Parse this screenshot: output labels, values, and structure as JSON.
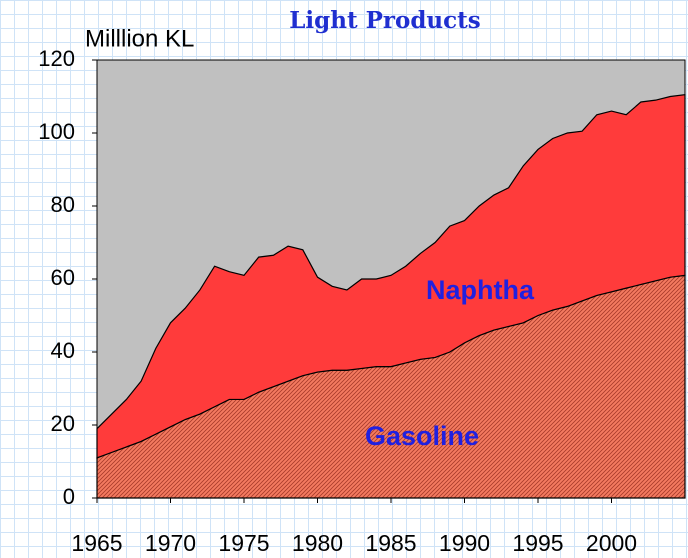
{
  "chart_data": {
    "type": "stacked-area",
    "title": "Light Products",
    "ylabel": "Milllion KL",
    "x": [
      1965,
      1966,
      1967,
      1968,
      1969,
      1970,
      1971,
      1972,
      1973,
      1974,
      1975,
      1976,
      1977,
      1978,
      1979,
      1980,
      1981,
      1982,
      1983,
      1984,
      1985,
      1986,
      1987,
      1988,
      1989,
      1990,
      1991,
      1992,
      1993,
      1994,
      1995,
      1996,
      1997,
      1998,
      1999,
      2000,
      2001,
      2002,
      2003,
      2004,
      2005
    ],
    "series": [
      {
        "name": "Gasoline",
        "color": "#f47a60",
        "values": [
          11,
          12.5,
          14,
          15.5,
          17.5,
          19.5,
          21.5,
          23,
          25,
          27,
          27,
          29,
          30.5,
          32,
          33.5,
          34.5,
          35,
          35,
          35.5,
          36,
          36,
          37,
          38,
          38.5,
          40,
          42.5,
          44.5,
          46,
          47,
          48,
          50,
          51.5,
          52.5,
          54,
          55.5,
          56.5,
          57.5,
          58.5,
          59.5,
          60.5,
          61
        ]
      },
      {
        "name": "Naphtha",
        "color": "#ff3b3b",
        "values": [
          8,
          10.5,
          13,
          16.5,
          23.5,
          28.5,
          30.5,
          34,
          38.5,
          35,
          34,
          37,
          36,
          37,
          34.5,
          26,
          23,
          22,
          24.5,
          24,
          25,
          26.5,
          29,
          31.5,
          34.5,
          33.5,
          35.5,
          37,
          38,
          43,
          45.5,
          47,
          47.5,
          46.5,
          49.5,
          49.5,
          47.5,
          50,
          49.5,
          49.5,
          49.5
        ]
      }
    ],
    "xlim": [
      1965,
      2005
    ],
    "xticks": [
      1965,
      1970,
      1975,
      1980,
      1985,
      1990,
      1995,
      2000
    ],
    "ylim": [
      0,
      120
    ],
    "yticks": [
      0,
      20,
      40,
      60,
      80,
      100,
      120
    ],
    "plot_background": "#c0c0c0"
  }
}
